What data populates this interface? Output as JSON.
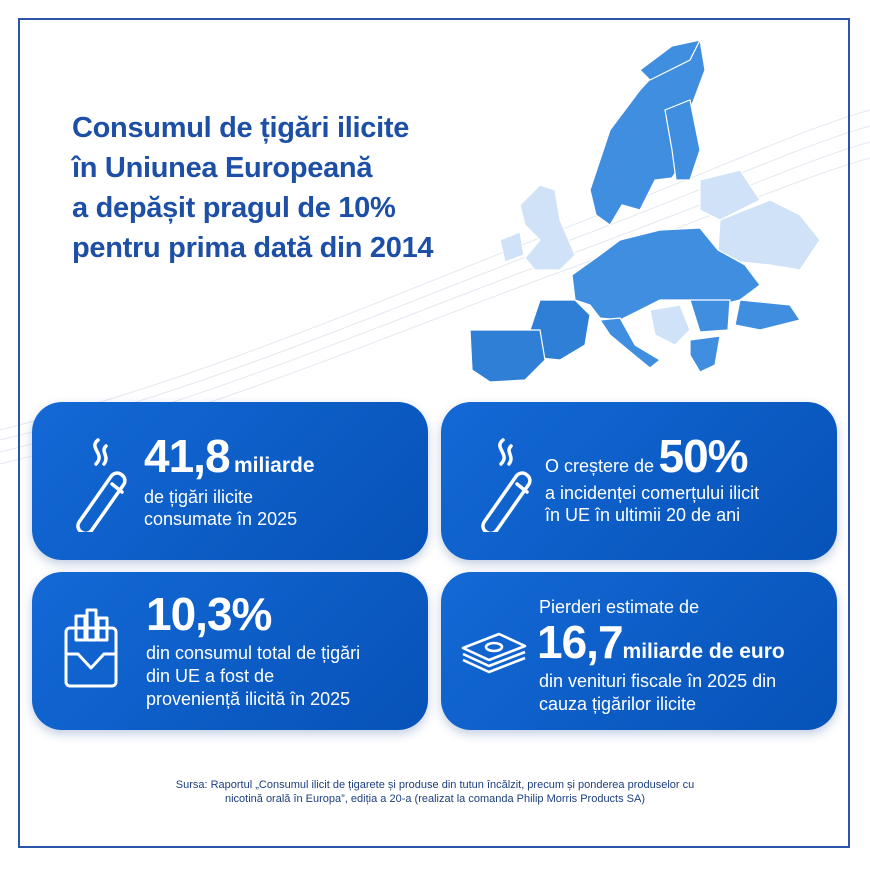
{
  "title": {
    "lines": [
      "Consumul de țigări ilicite",
      "în Uniunea Europeană",
      "a depășit pragul de 10%",
      "pentru prima dată din 2014"
    ]
  },
  "cards": [
    {
      "big": "41,8",
      "unit": "miliarde",
      "lines": [
        "de țigări ilicite",
        "consumate în 2025"
      ]
    },
    {
      "lead": "O creștere de",
      "big": "50%",
      "lines": [
        "a incidenței comerțului ilicit",
        "în UE în ultimii 20 de ani"
      ]
    },
    {
      "big": "10,3%",
      "lines": [
        "din consumul total de țigări",
        "din UE a fost de",
        "proveniență ilicită în 2025"
      ]
    },
    {
      "lead": "Pierderi estimate de",
      "big": "16,7",
      "unit": "miliarde de euro",
      "lines": [
        "din venituri fiscale în 2025 din",
        "cauza țigărilor ilicite"
      ]
    }
  ],
  "source": {
    "lines": [
      "Sursa: Raportul „Consumul ilicit de țigarete și produse din tutun încălzit, precum și ponderea produselor cu",
      "nicotină orală în Europa”, ediția a 20-a (realizat la comanda Philip Morris Products SA)"
    ]
  }
}
